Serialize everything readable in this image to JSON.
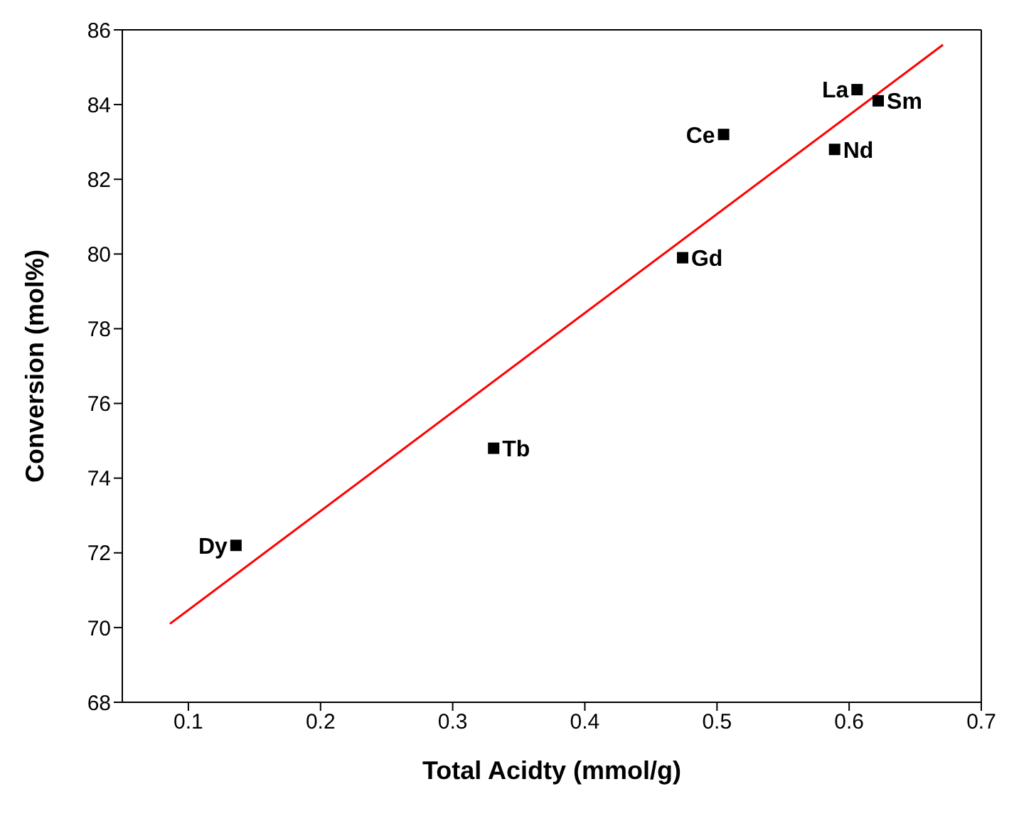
{
  "chart_data": {
    "type": "scatter",
    "xlabel": "Total Acidty (mmol/g)",
    "ylabel": "Conversion (mol%)",
    "xlim": [
      0.05,
      0.7
    ],
    "xticks": [
      0.1,
      0.2,
      0.3,
      0.4,
      0.5,
      0.6,
      0.7
    ],
    "ylim": [
      68,
      86
    ],
    "yticks": [
      68,
      70,
      72,
      74,
      76,
      78,
      80,
      82,
      84,
      86
    ],
    "marker": "square",
    "series": [
      {
        "type": "scatter",
        "color": "#000000",
        "x": [
          0.136,
          0.331,
          0.474,
          0.505,
          0.589,
          0.606,
          0.622
        ],
        "values": [
          72.2,
          74.8,
          79.9,
          83.2,
          82.8,
          84.4,
          84.1
        ]
      },
      {
        "type": "line",
        "color": "#ff0000",
        "line_style": "solid",
        "marker": "none",
        "x": [
          0.086,
          0.671
        ],
        "values": [
          70.1,
          85.6
        ]
      }
    ],
    "annotations": [
      {
        "text": "Dy",
        "x": 0.136,
        "y": 72.2
      },
      {
        "text": "Tb",
        "x": 0.331,
        "y": 74.8
      },
      {
        "text": "Gd",
        "x": 0.474,
        "y": 79.9
      },
      {
        "text": "Ce",
        "x": 0.505,
        "y": 83.2
      },
      {
        "text": "Nd",
        "x": 0.589,
        "y": 82.8
      },
      {
        "text": "La",
        "x": 0.606,
        "y": 84.4
      },
      {
        "text": "Sm",
        "x": 0.622,
        "y": 84.1
      }
    ]
  }
}
